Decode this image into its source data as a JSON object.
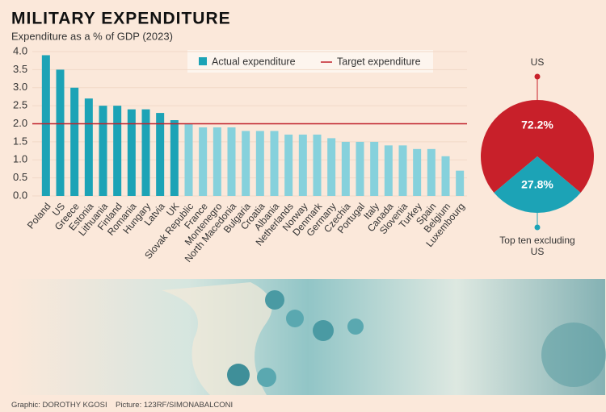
{
  "title": "MILITARY EXPENDITURE",
  "subtitle": "Expenditure as a % of GDP (2023)",
  "chart_data": [
    {
      "type": "bar",
      "categories": [
        "Poland",
        "US",
        "Greece",
        "Estonia",
        "Lithuania",
        "Finland",
        "Romania",
        "Hungary",
        "Latvia",
        "UK",
        "Slovak Republic",
        "France",
        "Montenegro",
        "North Macedonia",
        "Bulgaria",
        "Croatia",
        "Albania",
        "Netherlands",
        "Norway",
        "Denmark",
        "Germany",
        "Czechia",
        "Portugal",
        "Italy",
        "Canada",
        "Slovenia",
        "Turkey",
        "Spain",
        "Belgium",
        "Luxembourg"
      ],
      "series": [
        {
          "name": "Actual expenditure",
          "color": "#1ca3b6",
          "values": [
            3.9,
            3.5,
            3.0,
            2.7,
            2.5,
            2.5,
            2.4,
            2.4,
            2.3,
            2.1,
            2.0,
            1.9,
            1.9,
            1.9,
            1.8,
            1.8,
            1.8,
            1.7,
            1.7,
            1.7,
            1.6,
            1.5,
            1.5,
            1.5,
            1.4,
            1.4,
            1.3,
            1.3,
            1.1,
            0.7
          ]
        }
      ],
      "bar_colors": [
        "#1ca3b6",
        "#1ca3b6",
        "#1ca3b6",
        "#1ca3b6",
        "#1ca3b6",
        "#1ca3b6",
        "#1ca3b6",
        "#1ca3b6",
        "#1ca3b6",
        "#1ca3b6",
        "#86d1dc",
        "#86d1dc",
        "#86d1dc",
        "#86d1dc",
        "#86d1dc",
        "#86d1dc",
        "#86d1dc",
        "#86d1dc",
        "#86d1dc",
        "#86d1dc",
        "#86d1dc",
        "#86d1dc",
        "#86d1dc",
        "#86d1dc",
        "#86d1dc",
        "#86d1dc",
        "#86d1dc",
        "#86d1dc",
        "#86d1dc",
        "#86d1dc"
      ],
      "target": {
        "name": "Target expenditure",
        "value": 2.0,
        "color": "#c0202a"
      },
      "ylim": [
        0,
        4
      ],
      "yticks": [
        {
          "value": 0,
          "label": "0.0"
        },
        0.5,
        {
          "value": 1,
          "label": "1.0"
        },
        1.5,
        {
          "value": 2,
          "label": "2.0"
        },
        2.5,
        {
          "value": 3,
          "label": "3.0"
        },
        3.5,
        {
          "value": 4,
          "label": "4.0"
        }
      ]
    },
    {
      "type": "pie",
      "categories": [
        "US",
        "Top ten excluding US"
      ],
      "values": [
        72.2,
        27.8
      ],
      "value_labels": [
        "72.2%",
        "27.8%"
      ],
      "colors": [
        "#c8202a",
        "#1ca3b6"
      ]
    }
  ],
  "credits": {
    "graphic": "Graphic: DOROTHY KGOSI",
    "picture": "Picture: 123RF/SIMONABALCONI"
  }
}
